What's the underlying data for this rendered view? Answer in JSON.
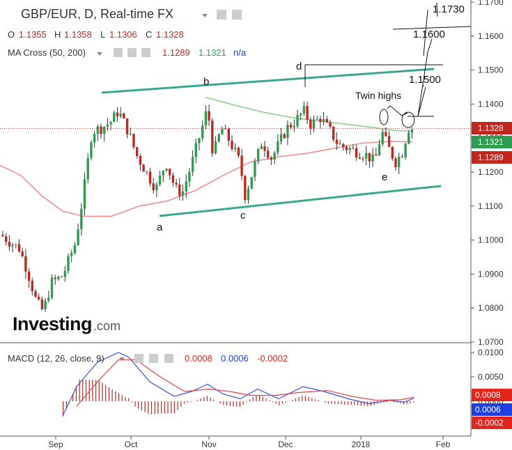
{
  "header": {
    "title": "GBP/EUR, D, Real-time FX",
    "ohlc": {
      "o_label": "O",
      "o": "1.1355",
      "h_label": "H",
      "h": "1.1358",
      "l_label": "L",
      "l": "1.1306",
      "c_label": "C",
      "c": "1.1328"
    },
    "ma": {
      "label": "MA Cross (50, 200)",
      "v1": "1.1289",
      "v2": "1.1321",
      "v3": "n/a"
    }
  },
  "macd_header": {
    "label": "MACD (12, 26, close, 9)",
    "v1": "0.0008",
    "v2": "0.0006",
    "v3": "-0.0002"
  },
  "watermark": {
    "brand": "Investing",
    "suffix": ".com"
  },
  "colors": {
    "up": "#2e9d50",
    "down": "#c0281f",
    "ma_fast": "#f08f8f",
    "ma_slow": "#8fcf8f",
    "channel": "#3aa88e",
    "price_line": "#e0454a",
    "macd": "#3a4ee0",
    "signal": "#e0454a"
  },
  "chart_data": [
    {
      "type": "candlestick",
      "title": "GBP/EUR, D, Real-time FX",
      "ylim": [
        1.07,
        1.175
      ],
      "y_ticks": [
        "1.1700",
        "1.1600",
        "1.1500",
        "1.1400",
        "1.1300",
        "1.1200",
        "1.1100",
        "1.1000",
        "1.0900",
        "1.0800",
        "1.0700"
      ],
      "x_ticks": [
        "Sep",
        "Oct",
        "Nov",
        "Dec",
        "2018",
        "Feb"
      ],
      "last_price_tags": [
        {
          "label": "1.1328",
          "value": 1.1328,
          "color": "#c0281f"
        },
        {
          "label": "1.1321",
          "value": 1.1321,
          "color": "#2e9d50"
        },
        {
          "label": "1.1289",
          "value": 1.1289,
          "color": "#c0281f"
        }
      ],
      "wave_labels": [
        "a",
        "b",
        "c",
        "d",
        "e"
      ],
      "annotations": [
        "Twin highs",
        "1.1500",
        "1.1600",
        "1.1730"
      ]
    },
    {
      "type": "macd",
      "title": "MACD (12, 26, close, 9)",
      "ylim": [
        -0.0035,
        0.0105
      ],
      "y_ticks": [
        "0.0100",
        "0.0050",
        "0.0000"
      ],
      "last_value_tags": [
        {
          "label": "0.0008",
          "value": 0.0008,
          "color": "#e0261f"
        },
        {
          "label": "0.0006",
          "value": 0.0006,
          "color": "#1f3fe0"
        },
        {
          "label": "-0.0002",
          "value": -0.0002,
          "color": "#e0261f"
        }
      ]
    }
  ]
}
